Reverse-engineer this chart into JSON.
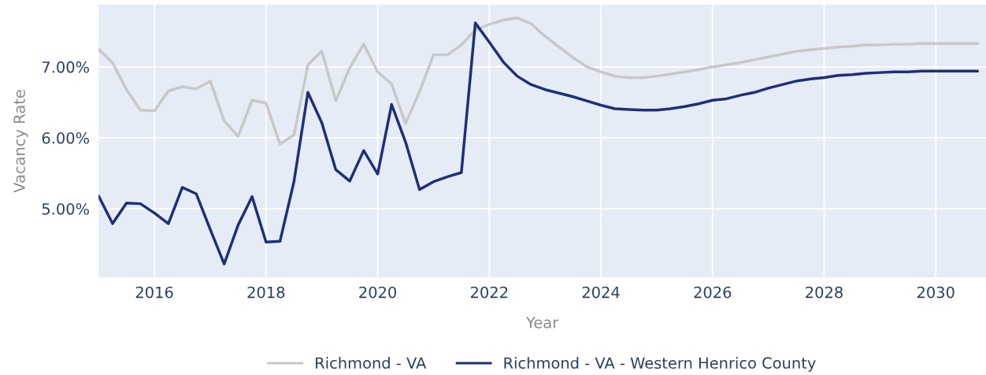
{
  "chart_data": {
    "type": "line",
    "xlabel": "Year",
    "ylabel": "Vacancy Rate",
    "x": [
      2015.0,
      2015.25,
      2015.5,
      2015.75,
      2016.0,
      2016.25,
      2016.5,
      2016.75,
      2017.0,
      2017.25,
      2017.5,
      2017.75,
      2018.0,
      2018.25,
      2018.5,
      2018.75,
      2019.0,
      2019.25,
      2019.5,
      2019.75,
      2020.0,
      2020.25,
      2020.5,
      2020.75,
      2021.0,
      2021.25,
      2021.5,
      2021.75,
      2022.0,
      2022.25,
      2022.5,
      2022.75,
      2023.0,
      2023.25,
      2023.5,
      2023.75,
      2024.0,
      2024.25,
      2024.5,
      2024.75,
      2025.0,
      2025.25,
      2025.5,
      2025.75,
      2026.0,
      2026.25,
      2026.5,
      2026.75,
      2027.0,
      2027.25,
      2027.5,
      2027.75,
      2028.0,
      2028.25,
      2028.5,
      2028.75,
      2029.0,
      2029.25,
      2029.5,
      2029.75,
      2030.0,
      2030.25,
      2030.5,
      2030.75
    ],
    "series": [
      {
        "name": "Richmond - VA",
        "color": "#c8c8c8",
        "values": [
          7.25,
          7.06,
          6.68,
          6.39,
          6.38,
          6.66,
          6.72,
          6.69,
          6.8,
          6.24,
          6.02,
          6.53,
          6.49,
          5.91,
          6.04,
          7.03,
          7.22,
          6.52,
          6.99,
          7.32,
          6.93,
          6.76,
          6.2,
          6.65,
          7.17,
          7.17,
          7.31,
          7.52,
          7.6,
          7.66,
          7.69,
          7.61,
          7.43,
          7.28,
          7.13,
          7.0,
          6.93,
          6.87,
          6.85,
          6.85,
          6.87,
          6.9,
          6.93,
          6.96,
          7.0,
          7.03,
          7.06,
          7.1,
          7.14,
          7.18,
          7.22,
          7.24,
          7.26,
          7.28,
          7.29,
          7.31,
          7.31,
          7.32,
          7.32,
          7.33,
          7.33,
          7.33,
          7.33,
          7.33
        ]
      },
      {
        "name": "Richmond - VA - Western Henrico County",
        "color": "#1f2f7a",
        "values": [
          5.18,
          4.79,
          5.08,
          5.07,
          4.94,
          4.79,
          5.3,
          5.21,
          4.71,
          4.22,
          4.77,
          5.17,
          4.53,
          4.54,
          5.38,
          6.64,
          6.21,
          5.55,
          5.39,
          5.82,
          5.49,
          6.47,
          5.94,
          5.27,
          5.38,
          5.45,
          5.51,
          7.62,
          7.35,
          7.07,
          6.87,
          6.75,
          6.68,
          6.63,
          6.58,
          6.52,
          6.46,
          6.41,
          6.4,
          6.39,
          6.39,
          6.41,
          6.44,
          6.48,
          6.53,
          6.55,
          6.6,
          6.64,
          6.7,
          6.75,
          6.8,
          6.83,
          6.85,
          6.88,
          6.89,
          6.91,
          6.92,
          6.93,
          6.93,
          6.94,
          6.94,
          6.94,
          6.94,
          6.94
        ]
      }
    ],
    "xlim": [
      2015.0,
      2030.9
    ],
    "xticks": [
      2016,
      2018,
      2020,
      2022,
      2024,
      2026,
      2028,
      2030
    ],
    "ylim": [
      4.03,
      7.88
    ],
    "yticks": [
      {
        "value": 5,
        "label": "5.00%"
      },
      {
        "value": 6,
        "label": "6.00%"
      },
      {
        "value": 7,
        "label": "7.00%"
      }
    ],
    "grid": true,
    "legend": "bottom"
  }
}
